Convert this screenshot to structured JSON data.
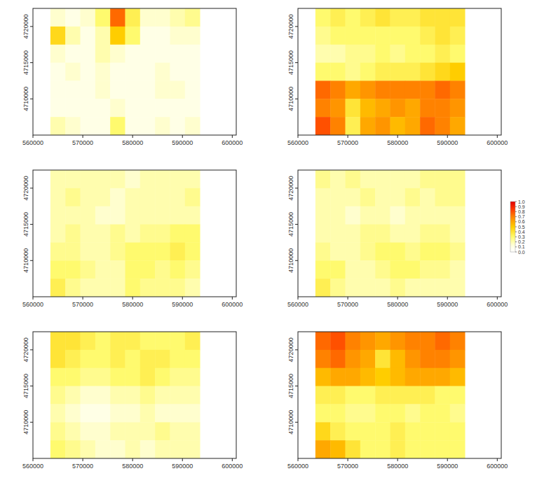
{
  "chart_data": [
    {
      "type": "heatmap",
      "xlim": [
        560000,
        600800
      ],
      "ylim": [
        4705000,
        4722500
      ],
      "xticks": [
        560000,
        570000,
        580000,
        590000,
        600000
      ],
      "yticks": [
        4710000,
        4715000,
        4720000
      ],
      "x": [
        565000,
        568000,
        571000,
        574000,
        577000,
        580000,
        583000,
        586000,
        589000,
        592000
      ],
      "y": [
        4721250,
        4718750,
        4716250,
        4713750,
        4711250,
        4708750,
        4706250
      ],
      "cells": [
        [
          0.15,
          0.1,
          0.15,
          0.3,
          0.75,
          0.35,
          0.15,
          0.15,
          0.2,
          0.25
        ],
        [
          0.45,
          0.2,
          0.1,
          0.2,
          0.5,
          0.3,
          0.1,
          0.1,
          0.15,
          0.15
        ],
        [
          0.15,
          0.1,
          0.1,
          0.2,
          0.15,
          0.1,
          0.1,
          0.1,
          0.1,
          0.1
        ],
        [
          0.1,
          0.15,
          0.1,
          0.15,
          0.1,
          0.1,
          0.1,
          0.15,
          0.1,
          0.1
        ],
        [
          0.1,
          0.1,
          0.1,
          0.15,
          0.1,
          0.1,
          0.1,
          0.15,
          0.15,
          0.1
        ],
        [
          0.1,
          0.1,
          0.1,
          0.1,
          0.15,
          0.1,
          0.1,
          0.1,
          0.1,
          0.1
        ],
        [
          0.2,
          0.15,
          0.1,
          0.1,
          0.3,
          0.1,
          0.1,
          0.15,
          0.1,
          0.15
        ]
      ]
    },
    {
      "type": "heatmap",
      "xlim": [
        560000,
        600800
      ],
      "ylim": [
        4705000,
        4722500
      ],
      "xticks": [
        560000,
        570000,
        580000,
        590000,
        600000
      ],
      "yticks": [
        4710000,
        4715000,
        4720000
      ],
      "x": [
        565000,
        568000,
        571000,
        574000,
        577000,
        580000,
        583000,
        586000,
        589000,
        592000
      ],
      "y": [
        4721250,
        4718750,
        4716250,
        4713750,
        4711250,
        4708750,
        4706250
      ],
      "cells": [
        [
          0.3,
          0.35,
          0.3,
          0.35,
          0.4,
          0.35,
          0.35,
          0.4,
          0.4,
          0.4
        ],
        [
          0.25,
          0.3,
          0.3,
          0.3,
          0.3,
          0.3,
          0.3,
          0.35,
          0.4,
          0.35
        ],
        [
          0.2,
          0.2,
          0.25,
          0.25,
          0.3,
          0.25,
          0.3,
          0.3,
          0.35,
          0.3
        ],
        [
          0.3,
          0.3,
          0.25,
          0.3,
          0.35,
          0.35,
          0.35,
          0.4,
          0.45,
          0.5
        ],
        [
          0.75,
          0.7,
          0.6,
          0.65,
          0.7,
          0.7,
          0.7,
          0.7,
          0.75,
          0.7
        ],
        [
          0.7,
          0.65,
          0.4,
          0.55,
          0.6,
          0.65,
          0.6,
          0.7,
          0.7,
          0.65
        ],
        [
          0.8,
          0.7,
          0.35,
          0.6,
          0.65,
          0.55,
          0.6,
          0.75,
          0.7,
          0.6
        ]
      ]
    },
    {
      "type": "heatmap",
      "xlim": [
        560000,
        600800
      ],
      "ylim": [
        4705000,
        4722500
      ],
      "xticks": [
        560000,
        570000,
        580000,
        590000,
        600000
      ],
      "yticks": [
        4710000,
        4715000,
        4720000
      ],
      "x": [
        565000,
        568000,
        571000,
        574000,
        577000,
        580000,
        583000,
        586000,
        589000,
        592000
      ],
      "y": [
        4721250,
        4718750,
        4716250,
        4713750,
        4711250,
        4708750,
        4706250
      ],
      "cells": [
        [
          0.2,
          0.2,
          0.2,
          0.2,
          0.2,
          0.15,
          0.2,
          0.2,
          0.2,
          0.2
        ],
        [
          0.2,
          0.25,
          0.2,
          0.2,
          0.15,
          0.2,
          0.2,
          0.2,
          0.2,
          0.25
        ],
        [
          0.2,
          0.2,
          0.2,
          0.15,
          0.15,
          0.2,
          0.2,
          0.2,
          0.2,
          0.2
        ],
        [
          0.2,
          0.25,
          0.2,
          0.2,
          0.25,
          0.2,
          0.25,
          0.25,
          0.3,
          0.3
        ],
        [
          0.25,
          0.25,
          0.2,
          0.2,
          0.25,
          0.3,
          0.3,
          0.3,
          0.35,
          0.3
        ],
        [
          0.3,
          0.3,
          0.25,
          0.2,
          0.2,
          0.3,
          0.3,
          0.25,
          0.3,
          0.25
        ],
        [
          0.35,
          0.25,
          0.2,
          0.2,
          0.2,
          0.3,
          0.25,
          0.25,
          0.25,
          0.2
        ]
      ]
    },
    {
      "type": "heatmap",
      "xlim": [
        560000,
        600800
      ],
      "ylim": [
        4705000,
        4722500
      ],
      "xticks": [
        560000,
        570000,
        580000,
        590000,
        600000
      ],
      "yticks": [
        4710000,
        4715000,
        4720000
      ],
      "x": [
        565000,
        568000,
        571000,
        574000,
        577000,
        580000,
        583000,
        586000,
        589000,
        592000
      ],
      "y": [
        4721250,
        4718750,
        4716250,
        4713750,
        4711250,
        4708750,
        4706250
      ],
      "cells": [
        [
          0.25,
          0.2,
          0.25,
          0.2,
          0.2,
          0.2,
          0.2,
          0.25,
          0.25,
          0.25
        ],
        [
          0.2,
          0.2,
          0.2,
          0.25,
          0.2,
          0.2,
          0.25,
          0.2,
          0.25,
          0.25
        ],
        [
          0.2,
          0.2,
          0.15,
          0.2,
          0.2,
          0.15,
          0.2,
          0.2,
          0.2,
          0.2
        ],
        [
          0.2,
          0.2,
          0.2,
          0.25,
          0.25,
          0.2,
          0.2,
          0.25,
          0.25,
          0.2
        ],
        [
          0.25,
          0.2,
          0.2,
          0.25,
          0.3,
          0.3,
          0.25,
          0.3,
          0.3,
          0.25
        ],
        [
          0.3,
          0.3,
          0.2,
          0.2,
          0.25,
          0.3,
          0.3,
          0.25,
          0.25,
          0.2
        ],
        [
          0.35,
          0.25,
          0.2,
          0.2,
          0.2,
          0.25,
          0.2,
          0.2,
          0.2,
          0.2
        ]
      ],
      "colorbar": {
        "range": [
          0,
          1
        ],
        "ticks": [
          {
            "value": 0,
            "label": "0.0"
          },
          0.1,
          0.2,
          0.3,
          0.4,
          0.5,
          0.6,
          0.7,
          0.8,
          0.9,
          {
            "value": 1,
            "label": "1.0"
          }
        ]
      }
    },
    {
      "type": "heatmap",
      "xlim": [
        560000,
        600800
      ],
      "ylim": [
        4705000,
        4722500
      ],
      "xticks": [
        560000,
        570000,
        580000,
        590000,
        600000
      ],
      "yticks": [
        4710000,
        4715000,
        4720000
      ],
      "x": [
        565000,
        568000,
        571000,
        574000,
        577000,
        580000,
        583000,
        586000,
        589000,
        592000
      ],
      "y": [
        4721250,
        4718750,
        4716250,
        4713750,
        4711250,
        4708750,
        4706250
      ],
      "cells": [
        [
          0.4,
          0.4,
          0.35,
          0.3,
          0.35,
          0.35,
          0.3,
          0.3,
          0.3,
          0.35
        ],
        [
          0.4,
          0.35,
          0.3,
          0.3,
          0.35,
          0.3,
          0.35,
          0.35,
          0.3,
          0.3
        ],
        [
          0.3,
          0.3,
          0.25,
          0.25,
          0.3,
          0.3,
          0.35,
          0.3,
          0.25,
          0.25
        ],
        [
          0.25,
          0.2,
          0.15,
          0.15,
          0.2,
          0.2,
          0.25,
          0.2,
          0.2,
          0.2
        ],
        [
          0.2,
          0.15,
          0.1,
          0.1,
          0.15,
          0.15,
          0.2,
          0.15,
          0.15,
          0.15
        ],
        [
          0.25,
          0.2,
          0.15,
          0.15,
          0.2,
          0.2,
          0.2,
          0.25,
          0.2,
          0.2
        ],
        [
          0.3,
          0.25,
          0.2,
          0.15,
          0.15,
          0.2,
          0.15,
          0.2,
          0.2,
          0.2
        ]
      ]
    },
    {
      "type": "heatmap",
      "xlim": [
        560000,
        600800
      ],
      "ylim": [
        4705000,
        4722500
      ],
      "xticks": [
        560000,
        570000,
        580000,
        590000,
        600000
      ],
      "yticks": [
        4710000,
        4715000,
        4720000
      ],
      "x": [
        565000,
        568000,
        571000,
        574000,
        577000,
        580000,
        583000,
        586000,
        589000,
        592000
      ],
      "y": [
        4721250,
        4718750,
        4716250,
        4713750,
        4711250,
        4708750,
        4706250
      ],
      "cells": [
        [
          0.75,
          0.8,
          0.7,
          0.65,
          0.6,
          0.65,
          0.7,
          0.7,
          0.75,
          0.7
        ],
        [
          0.7,
          0.75,
          0.65,
          0.6,
          0.4,
          0.55,
          0.65,
          0.7,
          0.7,
          0.65
        ],
        [
          0.55,
          0.6,
          0.6,
          0.55,
          0.5,
          0.55,
          0.6,
          0.6,
          0.6,
          0.55
        ],
        [
          0.35,
          0.35,
          0.3,
          0.3,
          0.35,
          0.35,
          0.35,
          0.35,
          0.3,
          0.3
        ],
        [
          0.3,
          0.3,
          0.25,
          0.25,
          0.3,
          0.3,
          0.25,
          0.3,
          0.3,
          0.25
        ],
        [
          0.45,
          0.35,
          0.3,
          0.3,
          0.3,
          0.35,
          0.3,
          0.3,
          0.3,
          0.3
        ],
        [
          0.6,
          0.55,
          0.4,
          0.3,
          0.3,
          0.35,
          0.3,
          0.3,
          0.3,
          0.3
        ]
      ]
    }
  ]
}
